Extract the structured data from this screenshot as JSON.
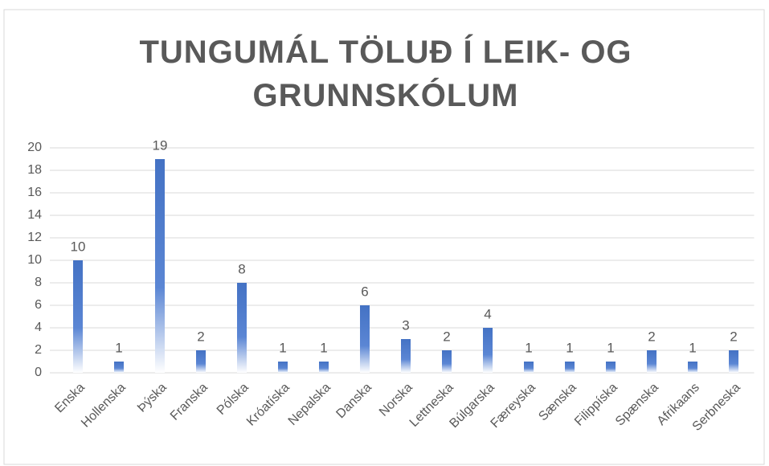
{
  "chart_data": {
    "type": "bar",
    "title": "TUNGUMÁL TÖLUÐ Í LEIK- OG GRUNNSKÓLUM",
    "categories": [
      "Enska",
      "Hollenska",
      "Þýska",
      "Franska",
      "Pólska",
      "Króatíska",
      "Nepalska",
      "Danska",
      "Norska",
      "Lettneska",
      "Búlgarska",
      "Færeyska",
      "Sænska",
      "Filippíska",
      "Spænska",
      "Afrikaans",
      "Serbneska"
    ],
    "values": [
      10,
      1,
      19,
      2,
      8,
      1,
      1,
      6,
      3,
      2,
      4,
      1,
      1,
      1,
      2,
      1,
      2
    ],
    "color": "#4472c4",
    "ylim": [
      0,
      20
    ],
    "yticks": [
      0,
      2,
      4,
      6,
      8,
      10,
      12,
      14,
      16,
      18,
      20
    ],
    "grid": true
  }
}
